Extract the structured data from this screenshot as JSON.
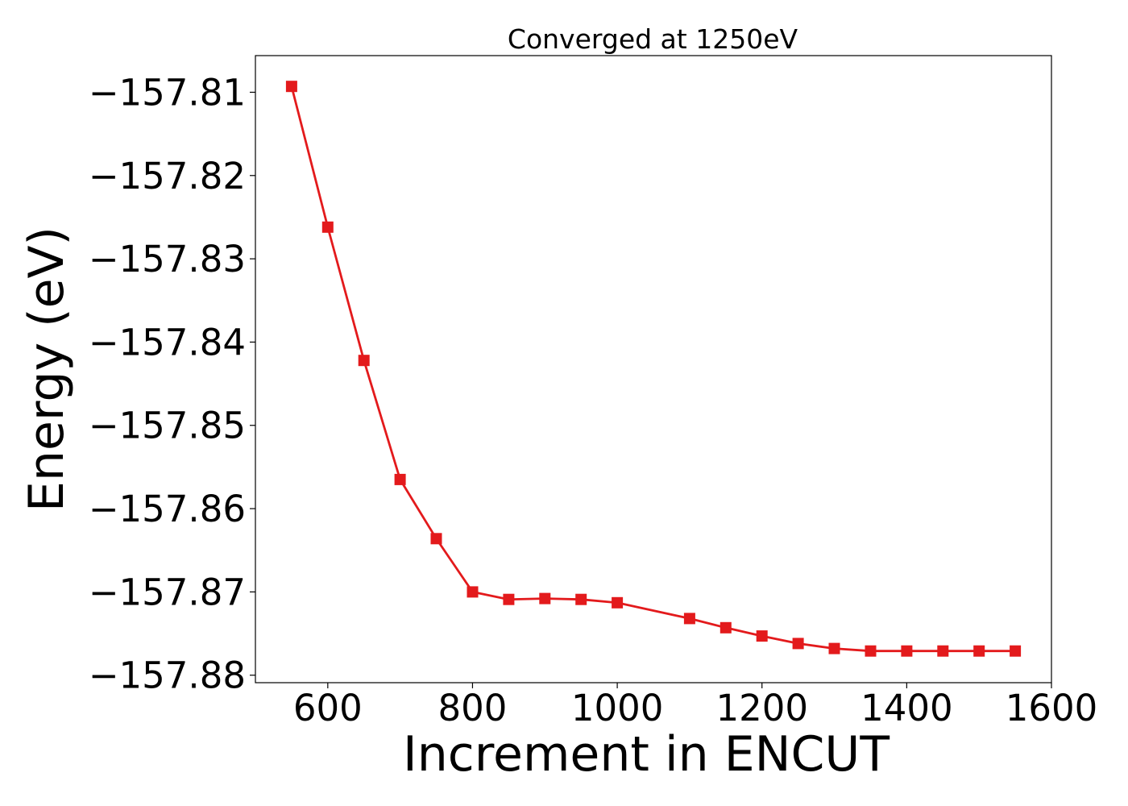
{
  "chart_data": {
    "type": "line",
    "title": "Converged at 1250eV",
    "xlabel": "Increment in ENCUT",
    "ylabel": "Energy (eV)",
    "xlim": [
      500,
      1600
    ],
    "ylim": [
      -157.8809,
      -157.8056
    ],
    "xticks": [
      600,
      800,
      1000,
      1200,
      1400,
      1600
    ],
    "xtick_labels": [
      "600",
      "800",
      "1000",
      "1200",
      "1400",
      "1600"
    ],
    "yticks": [
      -157.81,
      -157.82,
      -157.83,
      -157.84,
      -157.85,
      -157.86,
      -157.87,
      -157.88
    ],
    "ytick_labels": [
      "−157.81",
      "−157.82",
      "−157.83",
      "−157.84",
      "−157.85",
      "−157.86",
      "−157.87",
      "−157.88"
    ],
    "grid": false,
    "marker": "square",
    "series": [
      {
        "color": "#e31a1c",
        "x": [
          550,
          600,
          650,
          700,
          750,
          800,
          850,
          900,
          950,
          1000,
          1100,
          1150,
          1200,
          1250,
          1300,
          1350,
          1400,
          1450,
          1500,
          1550
        ],
        "y": [
          -157.8093,
          -157.8262,
          -157.8422,
          -157.8565,
          -157.8636,
          -157.87,
          -157.8709,
          -157.8708,
          -157.8709,
          -157.8713,
          -157.8732,
          -157.8743,
          -157.8753,
          -157.8762,
          -157.8768,
          -157.8771,
          -157.8771,
          -157.8771,
          -157.8771,
          -157.8771
        ]
      }
    ]
  }
}
